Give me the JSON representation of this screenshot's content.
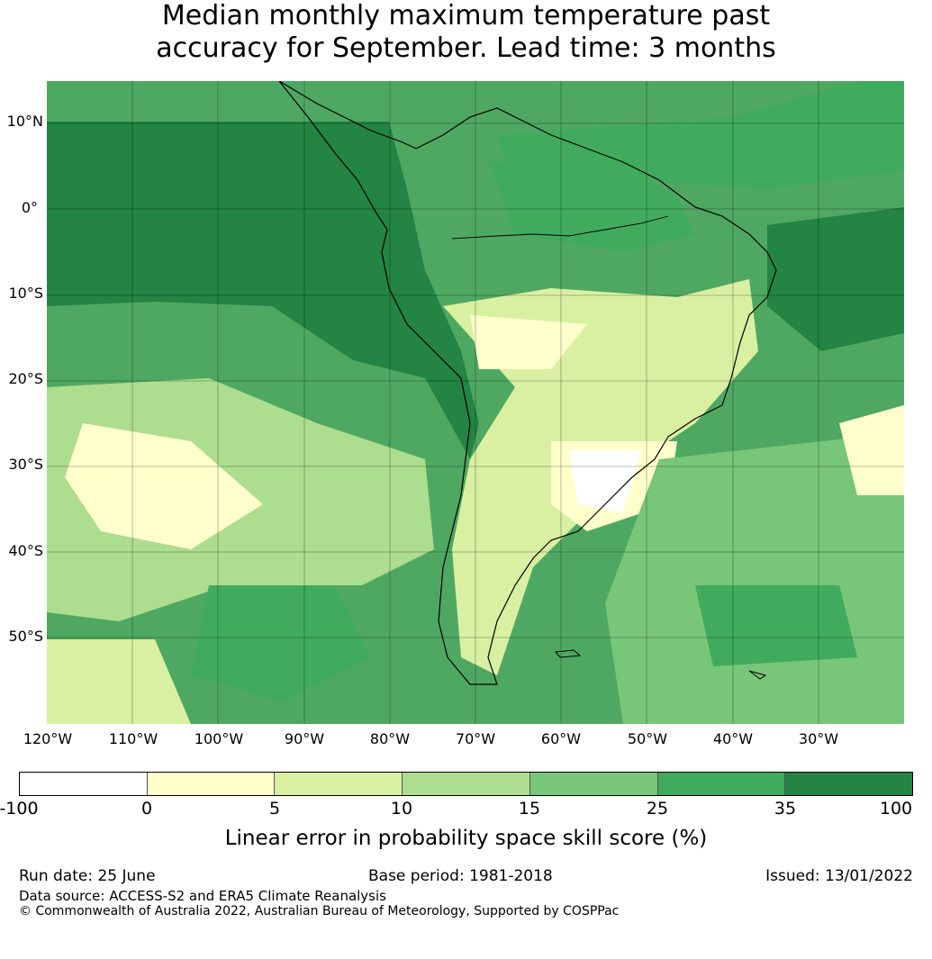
{
  "title": {
    "line1": "Median monthly maximum temperature past",
    "line2": "accuracy for September. Lead time: 3 months"
  },
  "map": {
    "latitude_labels": [
      "10°N",
      "0°",
      "10°S",
      "20°S",
      "30°S",
      "40°S",
      "50°S"
    ],
    "longitude_labels": [
      "120°W",
      "110°W",
      "100°W",
      "90°W",
      "80°W",
      "70°W",
      "60°W",
      "50°W",
      "40°W",
      "30°W"
    ],
    "extent": {
      "lon_min": -120,
      "lon_max": -20,
      "lat_min": -60,
      "lat_max": 15
    },
    "ocean_base_color": "#4fa862"
  },
  "colorbar": {
    "tick_labels": [
      "-100",
      "0",
      "5",
      "10",
      "15",
      "25",
      "35",
      "100"
    ],
    "colors": [
      "#ffffff",
      "#ffffcc",
      "#d9f0a3",
      "#addd8e",
      "#78c679",
      "#41ab5d",
      "#238443"
    ],
    "label": "Linear error in probability space skill score (%)"
  },
  "footer": {
    "run_date": "Run date: 25 June",
    "base_period": "Base period: 1981-2018",
    "issued": "Issued: 13/01/2022",
    "data_source": "Data source: ACCESS-S2 and ERA5 Climate Reanalysis",
    "copyright": "© Commonwealth of Australia 2022, Australian Bureau of Meteorology, Supported by COSPPac"
  }
}
